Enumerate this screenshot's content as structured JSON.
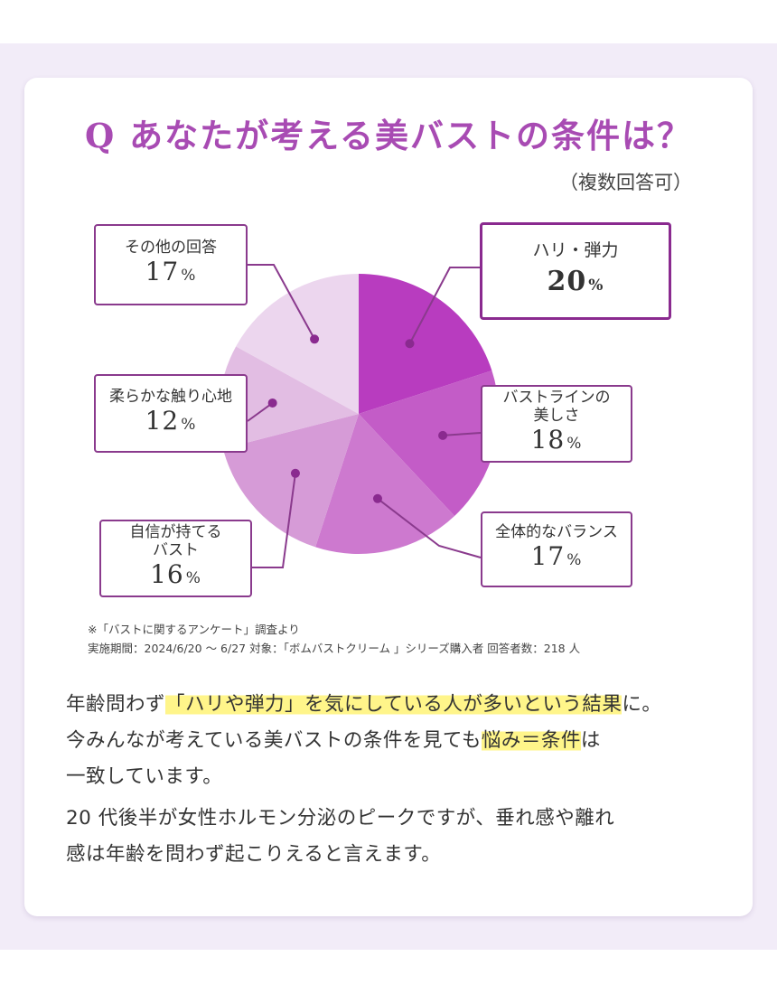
{
  "heading": {
    "title": "Q あなたが考える美バストの条件は？",
    "subtitle": "（複数回答可）"
  },
  "chart_data": {
    "type": "pie",
    "title": "Q あなたが考える美バストの条件は？",
    "unit": "%",
    "slices": [
      {
        "label": "ハリ・弾力",
        "value": 20,
        "color": "#b83cbf"
      },
      {
        "label": "バストラインの\n美しさ",
        "value": 18,
        "color": "#c35cc7"
      },
      {
        "label": "全体的なバランス",
        "value": 17,
        "color": "#cd79cf"
      },
      {
        "label": "自信が持てる\nバスト",
        "value": 16,
        "color": "#d69bd7"
      },
      {
        "label": "柔らかな触り心地",
        "value": 12,
        "color": "#e2bde3"
      },
      {
        "label": "その他の回答",
        "value": 17,
        "color": "#ecd6ee"
      }
    ],
    "highlight": "ハリ・弾力",
    "leader_color": "#8a3a8d"
  },
  "notes": {
    "line1": "※「バストに関するアンケート」調査より",
    "line2": "実施期間：2024/6/20 〜 6/27 対象：「ボムバストクリーム 」シリーズ購入者 回答者数：218 人"
  },
  "body": {
    "l1a": "年齢問わず",
    "l1b": "「ハリや弾力」を気にしている人が多いという結果",
    "l1c": "に。",
    "l2a": "今みんなが考えている美バストの条件を見ても",
    "l2b": "悩み＝条件",
    "l2c": "は",
    "l3": "一致しています。",
    "l4": "20 代後半が女性ホルモン分泌のピークですが、垂れ感や離れ",
    "l5": "感は年齢を問わず起こりえると言えます。"
  },
  "colors": {
    "accent": "#a84bb3",
    "band": "#f2ecf8",
    "highlight": "#fff58a"
  }
}
